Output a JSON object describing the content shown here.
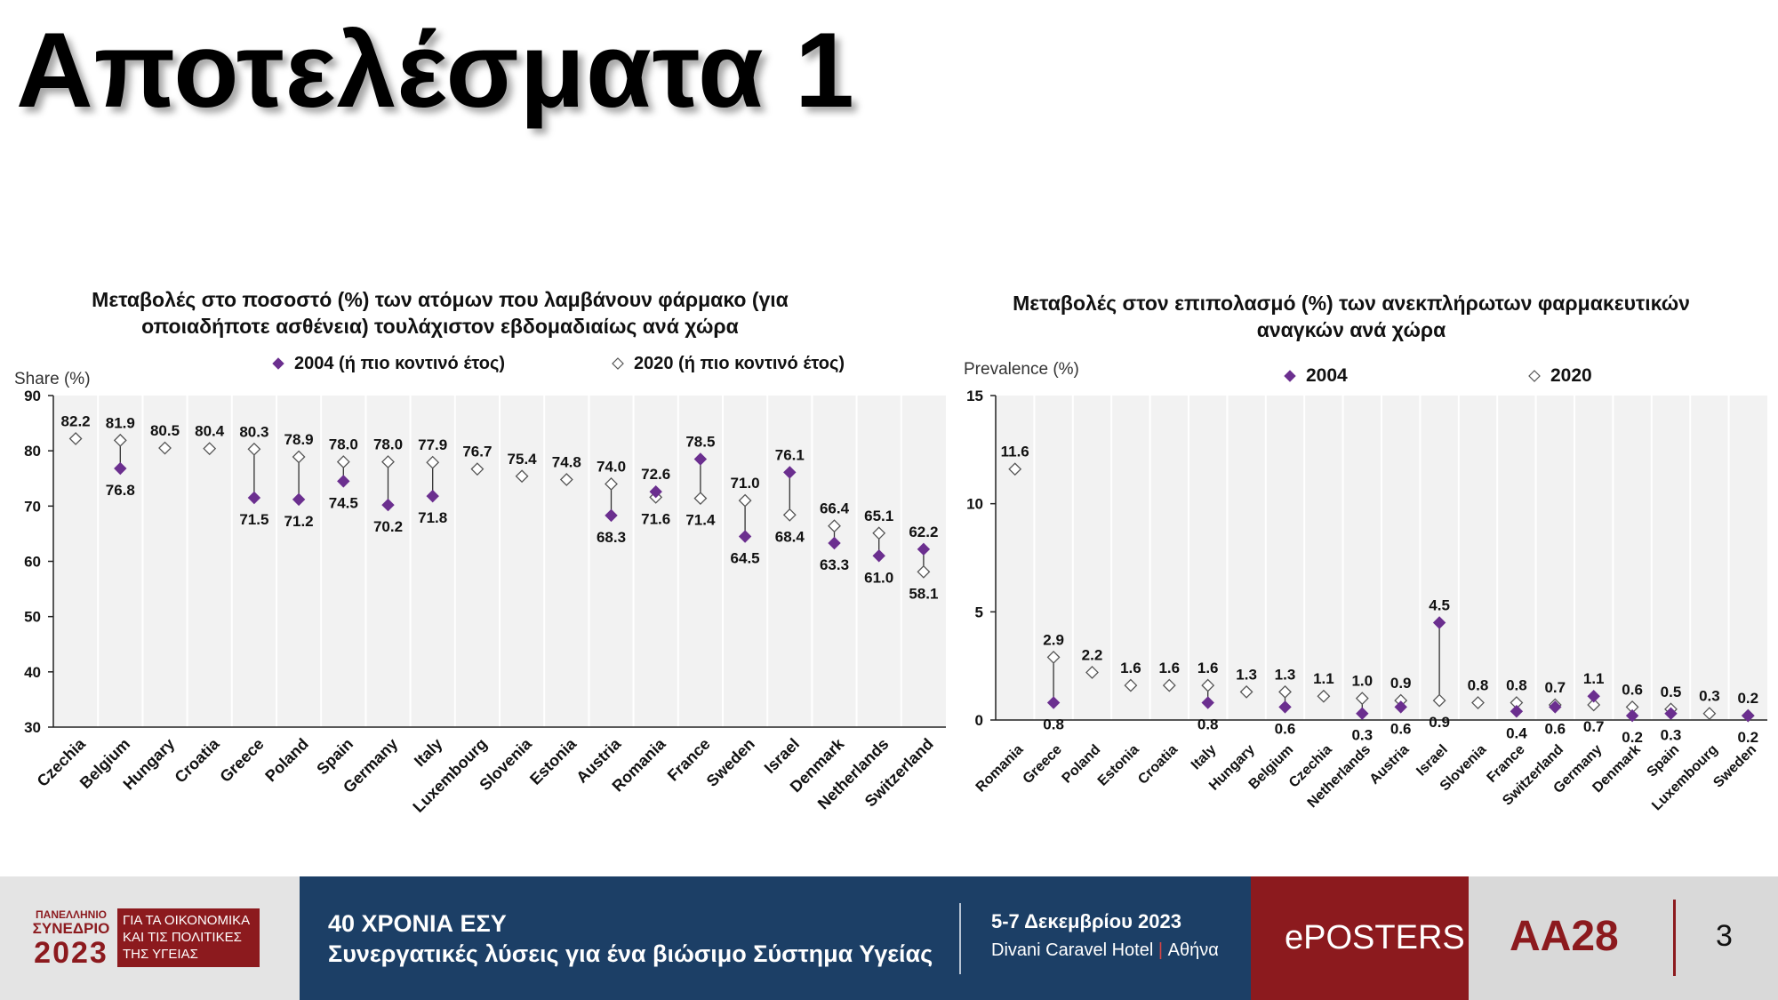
{
  "slide": {
    "title": "Αποτελέσματα 1",
    "page_number": "3"
  },
  "footer": {
    "logo_top": "ΠΑΝΕΛΛΗΝΙΟ",
    "logo_mid": "ΣΥΝΕΔΡΙΟ",
    "logo_year": "2023",
    "logo_box_l1": "ΓΙΑ ΤΑ ΟΙΚΟΝΟΜΙΚΑ",
    "logo_box_l2": "ΚΑΙ ΤΙΣ ΠΟΛΙΤΙΚΕΣ",
    "logo_box_l3": "ΤΗΣ ΥΓΕΙΑΣ",
    "line1": "40 ΧΡΟΝΙΑ ΕΣΥ",
    "line2": "Συνεργατικές λύσεις για ένα βιώσιμο Σύστημα Υγείας",
    "date": "5-7 Δεκεμβρίου 2023",
    "venue": "Divani Caravel Hotel",
    "venue_sep": "|",
    "city": "Αθήνα",
    "eposters": "ePOSTERS",
    "code": "AA28"
  },
  "colors": {
    "series_2004": "#6b2f8f",
    "panel": "#f2f2f2",
    "footer_blue": "#1c3f66",
    "footer_red": "#8c1a1e"
  },
  "chart_data": [
    {
      "type": "scatter",
      "title": "Μεταβολές στο ποσοστό (%) των ατόμων που λαμβάνουν φάρμακο (για οποιαδήποτε ασθένεια) τουλάχιστον εβδομαδιαίως ανά χώρα",
      "title_line1": "Μεταβολές στο ποσοστό (%) των ατόμων που λαμβάνουν φάρμακο (για",
      "title_line2": "οποιαδήποτε ασθένεια) τουλάχιστον εβδομαδιαίως ανά χώρα",
      "ylabel": "Share (%)",
      "ylim": [
        30,
        90
      ],
      "yticks": [
        30,
        40,
        50,
        60,
        70,
        80,
        90
      ],
      "grid": "vertical",
      "legend": {
        "placement": "top",
        "s2004": "2004 (ή πιο κοντινό έτος)",
        "s2020": "2020 (ή πιο κοντινό έτος)"
      },
      "categories": [
        "Czechia",
        "Belgium",
        "Hungary",
        "Croatia",
        "Greece",
        "Poland",
        "Spain",
        "Germany",
        "Italy",
        "Luxembourg",
        "Slovenia",
        "Estonia",
        "Austria",
        "Romania",
        "France",
        "Sweden",
        "Israel",
        "Denmark",
        "Netherlands",
        "Switzerland"
      ],
      "series": [
        {
          "name": "2004 (ή πιο κοντινό έτος)",
          "marker": "filled-diamond",
          "values": [
            null,
            76.8,
            null,
            null,
            71.5,
            71.2,
            74.5,
            70.2,
            71.8,
            null,
            null,
            null,
            68.3,
            72.6,
            78.5,
            64.5,
            76.1,
            63.3,
            61.0,
            62.2
          ]
        },
        {
          "name": "2020 (ή πιο κοντινό έτος)",
          "marker": "hollow-diamond",
          "values": [
            82.2,
            81.9,
            80.5,
            80.4,
            80.3,
            78.9,
            78.0,
            78.0,
            77.9,
            76.7,
            75.4,
            74.8,
            74.0,
            71.6,
            71.4,
            71.0,
            68.4,
            66.4,
            65.1,
            58.1
          ]
        }
      ],
      "data_labels": [
        {
          "i": 0,
          "v": "82.2",
          "pos": "above"
        },
        {
          "i": 1,
          "v": "81.9",
          "pos": "above"
        },
        {
          "i": 1,
          "v": "76.8",
          "pos": "below"
        },
        {
          "i": 2,
          "v": "80.5",
          "pos": "above"
        },
        {
          "i": 3,
          "v": "80.4",
          "pos": "above"
        },
        {
          "i": 4,
          "v": "80.3",
          "pos": "above"
        },
        {
          "i": 4,
          "v": "71.5",
          "pos": "below"
        },
        {
          "i": 5,
          "v": "78.9",
          "pos": "above"
        },
        {
          "i": 5,
          "v": "71.2",
          "pos": "below"
        },
        {
          "i": 6,
          "v": "78.0",
          "pos": "above"
        },
        {
          "i": 6,
          "v": "74.5",
          "pos": "below"
        },
        {
          "i": 7,
          "v": "78.0",
          "pos": "above"
        },
        {
          "i": 7,
          "v": "70.2",
          "pos": "below"
        },
        {
          "i": 8,
          "v": "77.9",
          "pos": "above"
        },
        {
          "i": 8,
          "v": "71.8",
          "pos": "below"
        },
        {
          "i": 9,
          "v": "76.7",
          "pos": "above"
        },
        {
          "i": 10,
          "v": "75.4",
          "pos": "above"
        },
        {
          "i": 11,
          "v": "74.8",
          "pos": "above"
        },
        {
          "i": 12,
          "v": "74.0",
          "pos": "above"
        },
        {
          "i": 12,
          "v": "68.3",
          "pos": "below"
        },
        {
          "i": 13,
          "v": "72.6",
          "pos": "above"
        },
        {
          "i": 13,
          "v": "71.6",
          "pos": "below"
        },
        {
          "i": 14,
          "v": "78.5",
          "pos": "above"
        },
        {
          "i": 14,
          "v": "71.4",
          "pos": "below"
        },
        {
          "i": 15,
          "v": "71.0",
          "pos": "above"
        },
        {
          "i": 15,
          "v": "64.5",
          "pos": "below"
        },
        {
          "i": 16,
          "v": "76.1",
          "pos": "above"
        },
        {
          "i": 16,
          "v": "68.4",
          "pos": "below"
        },
        {
          "i": 17,
          "v": "66.4",
          "pos": "above"
        },
        {
          "i": 17,
          "v": "63.3",
          "pos": "below"
        },
        {
          "i": 18,
          "v": "65.1",
          "pos": "above"
        },
        {
          "i": 18,
          "v": "61.0",
          "pos": "below"
        },
        {
          "i": 19,
          "v": "62.2",
          "pos": "above"
        },
        {
          "i": 19,
          "v": "58.1",
          "pos": "below"
        }
      ]
    },
    {
      "type": "scatter",
      "title": "Μεταβολές στον επιπολασμό (%) των ανεκπλήρωτων φαρμακευτικών αναγκών ανά χώρα",
      "title_line1": "Μεταβολές στον επιπολασμό (%) των ανεκπλήρωτων φαρμακευτικών",
      "title_line2": "αναγκών ανά χώρα",
      "ylabel": "Prevalence (%)",
      "ylim": [
        0,
        15
      ],
      "yticks": [
        0,
        5,
        10,
        15
      ],
      "grid": "vertical",
      "legend": {
        "placement": "top",
        "s2004": "2004",
        "s2020": "2020"
      },
      "categories": [
        "Romania",
        "Greece",
        "Poland",
        "Estonia",
        "Croatia",
        "Italy",
        "Hungary",
        "Belgium",
        "Czechia",
        "Netherlands",
        "Austria",
        "Israel",
        "Slovenia",
        "France",
        "Switzerland",
        "Germany",
        "Denmark",
        "Spain",
        "Luxembourg",
        "Sweden"
      ],
      "series": [
        {
          "name": "2004",
          "marker": "filled-diamond",
          "values": [
            null,
            0.8,
            null,
            null,
            null,
            0.8,
            null,
            0.6,
            null,
            0.3,
            0.6,
            4.5,
            null,
            0.4,
            0.6,
            1.1,
            0.2,
            0.3,
            null,
            0.2
          ]
        },
        {
          "name": "2020",
          "marker": "hollow-diamond",
          "values": [
            11.6,
            2.9,
            2.2,
            1.6,
            1.6,
            1.6,
            1.3,
            1.3,
            1.1,
            1.0,
            0.9,
            0.9,
            0.8,
            0.8,
            0.7,
            0.7,
            0.6,
            0.5,
            0.3,
            0.2
          ]
        }
      ],
      "data_labels": [
        {
          "i": 0,
          "v": "11.6",
          "pos": "above"
        },
        {
          "i": 1,
          "v": "2.9",
          "pos": "above"
        },
        {
          "i": 1,
          "v": "0.8",
          "pos": "below"
        },
        {
          "i": 2,
          "v": "2.2",
          "pos": "above"
        },
        {
          "i": 3,
          "v": "1.6",
          "pos": "above"
        },
        {
          "i": 4,
          "v": "1.6",
          "pos": "above"
        },
        {
          "i": 5,
          "v": "1.6",
          "pos": "above"
        },
        {
          "i": 5,
          "v": "0.8",
          "pos": "below"
        },
        {
          "i": 6,
          "v": "1.3",
          "pos": "above"
        },
        {
          "i": 7,
          "v": "1.3",
          "pos": "above"
        },
        {
          "i": 7,
          "v": "0.6",
          "pos": "below"
        },
        {
          "i": 8,
          "v": "1.1",
          "pos": "above"
        },
        {
          "i": 9,
          "v": "1.0",
          "pos": "above"
        },
        {
          "i": 9,
          "v": "0.3",
          "pos": "below"
        },
        {
          "i": 10,
          "v": "0.9",
          "pos": "above"
        },
        {
          "i": 10,
          "v": "0.6",
          "pos": "below"
        },
        {
          "i": 11,
          "v": "4.5",
          "pos": "above"
        },
        {
          "i": 11,
          "v": "0.9",
          "pos": "below"
        },
        {
          "i": 12,
          "v": "0.8",
          "pos": "above"
        },
        {
          "i": 13,
          "v": "0.8",
          "pos": "above"
        },
        {
          "i": 13,
          "v": "0.4",
          "pos": "below"
        },
        {
          "i": 14,
          "v": "0.7",
          "pos": "above"
        },
        {
          "i": 14,
          "v": "0.6",
          "pos": "below"
        },
        {
          "i": 15,
          "v": "1.1",
          "pos": "above"
        },
        {
          "i": 15,
          "v": "0.7",
          "pos": "below"
        },
        {
          "i": 16,
          "v": "0.6",
          "pos": "above"
        },
        {
          "i": 16,
          "v": "0.2",
          "pos": "below"
        },
        {
          "i": 17,
          "v": "0.5",
          "pos": "above"
        },
        {
          "i": 17,
          "v": "0.3",
          "pos": "below"
        },
        {
          "i": 18,
          "v": "0.3",
          "pos": "above"
        },
        {
          "i": 19,
          "v": "0.2",
          "pos": "above"
        },
        {
          "i": 19,
          "v": "0.2",
          "pos": "below"
        }
      ]
    }
  ]
}
